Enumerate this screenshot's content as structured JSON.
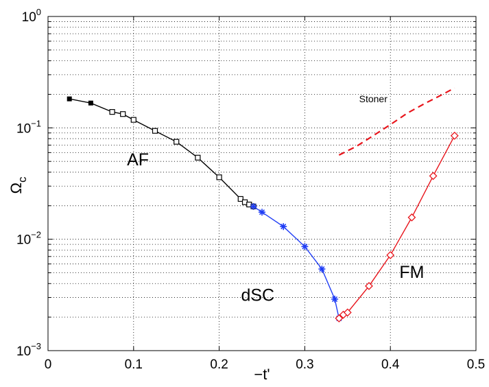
{
  "chart_data": {
    "type": "line",
    "title": "",
    "xlabel": "−t'",
    "ylabel_main": "Ω",
    "ylabel_sub": "c",
    "xlim": [
      0,
      0.5
    ],
    "ylim": [
      0.001,
      1
    ],
    "yscale": "log",
    "grid": true,
    "xticks": [
      0,
      0.1,
      0.2,
      0.3,
      0.4,
      0.5
    ],
    "xtick_labels": [
      "0",
      "0.1",
      "0.2",
      "0.3",
      "0.4",
      "0.5"
    ],
    "yticks": [
      {
        "value": 0.001,
        "base": "10",
        "exp": "−3"
      },
      {
        "value": 0.01,
        "base": "10",
        "exp": "−2"
      },
      {
        "value": 0.1,
        "base": "10",
        "exp": "−1"
      },
      {
        "value": 1,
        "base": "10",
        "exp": "0"
      }
    ],
    "series": [
      {
        "marker": "filled-square",
        "color": "#000000",
        "x": [
          0.025,
          0.05,
          0.075
        ],
        "y": [
          0.182,
          0.167,
          0.139
        ]
      },
      {
        "marker": "open-square",
        "color": "#000000",
        "x": [
          0.075,
          0.0875,
          0.1,
          0.125,
          0.15,
          0.175,
          0.2,
          0.225,
          0.23,
          0.235,
          0.24
        ],
        "y": [
          0.139,
          0.133,
          0.118,
          0.094,
          0.075,
          0.054,
          0.036,
          0.023,
          0.0215,
          0.0205,
          0.0197
        ]
      },
      {
        "marker": "star",
        "color": "#1f3df5",
        "x": [
          0.24,
          0.25,
          0.275,
          0.3,
          0.32,
          0.335,
          0.34
        ],
        "y": [
          0.0197,
          0.0175,
          0.013,
          0.0086,
          0.0054,
          0.0029,
          0.00195
        ]
      },
      {
        "marker": "open-diamond",
        "color": "#e8141b",
        "x": [
          0.34,
          0.345,
          0.35,
          0.375,
          0.4,
          0.425,
          0.45,
          0.475
        ],
        "y": [
          0.00195,
          0.0021,
          0.0022,
          0.0038,
          0.0072,
          0.0157,
          0.037,
          0.085
        ]
      },
      {
        "name": "Stoner",
        "marker": "none",
        "line": "dashed",
        "color": "#e8141b",
        "x": [
          0.34,
          0.36,
          0.38,
          0.4,
          0.42,
          0.44,
          0.46,
          0.475
        ],
        "y": [
          0.057,
          0.068,
          0.085,
          0.107,
          0.136,
          0.165,
          0.198,
          0.228
        ]
      }
    ],
    "annotations": [
      {
        "text": "AF",
        "x": 0.105,
        "y": 0.046,
        "size": "large"
      },
      {
        "text": "dSC",
        "x": 0.245,
        "y": 0.0028,
        "size": "large"
      },
      {
        "text": "FM",
        "x": 0.425,
        "y": 0.0045,
        "size": "large"
      },
      {
        "text": "Stoner",
        "x": 0.38,
        "y": 0.17,
        "size": "small"
      }
    ]
  }
}
